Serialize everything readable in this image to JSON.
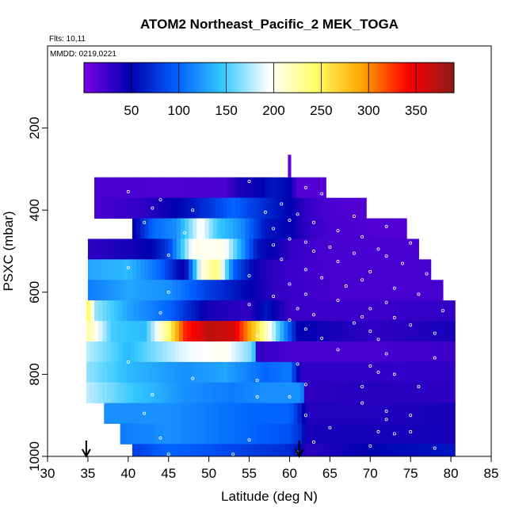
{
  "chart_data": {
    "type": "heatmap",
    "title": "ATOM2 Northeast_Pacific_2 MEK_TOGA",
    "flights_label": "Flts: 10,11",
    "date_label": "MMDD: 0219,0221",
    "xlabel": "Latitude (deg N)",
    "ylabel": "PSXC (mbar)",
    "xlim": [
      30,
      85
    ],
    "ylim": [
      1000,
      0
    ],
    "x_ticks": [
      "30",
      "35",
      "40",
      "45",
      "50",
      "55",
      "60",
      "65",
      "70",
      "75",
      "80",
      "85"
    ],
    "y_ticks": [
      "200",
      "400",
      "600",
      "800",
      "1000"
    ],
    "colorbar": {
      "range": [
        0,
        390
      ],
      "tick_labels": [
        "50",
        "100",
        "150",
        "200",
        "250",
        "300",
        "350"
      ],
      "colors": [
        "#7a00e6",
        "#0000b0",
        "#0060ff",
        "#33c8ff",
        "#ffffff",
        "#ffff66",
        "#ffa500",
        "#ff0000",
        "#8b1a1a"
      ]
    },
    "rows": [
      {
        "p0": 320,
        "p1": 370,
        "lat0": 35.8,
        "lat1": 64.5,
        "values": [
          [
            35.8,
            20
          ],
          [
            45,
            18
          ],
          [
            52,
            20
          ],
          [
            54,
            40
          ],
          [
            56,
            45
          ],
          [
            58,
            60
          ],
          [
            60,
            50
          ],
          [
            61,
            15
          ],
          [
            64.5,
            15
          ]
        ]
      },
      {
        "p0": 370,
        "p1": 420,
        "lat0": 35.8,
        "lat1": 69.5,
        "values": [
          [
            35.8,
            20
          ],
          [
            42,
            30
          ],
          [
            48,
            60
          ],
          [
            53,
            100
          ],
          [
            57,
            70
          ],
          [
            60,
            50
          ],
          [
            62,
            30
          ],
          [
            64,
            20
          ],
          [
            69.5,
            15
          ]
        ]
      },
      {
        "p0": 420,
        "p1": 470,
        "lat0": 40.5,
        "lat1": 74.5,
        "values": [
          [
            40.5,
            40
          ],
          [
            43,
            100
          ],
          [
            46,
            120
          ],
          [
            49,
            200
          ],
          [
            51,
            150
          ],
          [
            54,
            120
          ],
          [
            57,
            60
          ],
          [
            60,
            50
          ],
          [
            62,
            30
          ],
          [
            65,
            20
          ],
          [
            74.5,
            15
          ]
        ]
      },
      {
        "p0": 470,
        "p1": 520,
        "lat0": 35,
        "lat1": 76,
        "values": [
          [
            35,
            30
          ],
          [
            40,
            40
          ],
          [
            43,
            50
          ],
          [
            45,
            80
          ],
          [
            48,
            200
          ],
          [
            52,
            200
          ],
          [
            56,
            60
          ],
          [
            60,
            30
          ],
          [
            64,
            20
          ],
          [
            76,
            20
          ]
        ]
      },
      {
        "p0": 520,
        "p1": 570,
        "lat0": 35,
        "lat1": 77.5,
        "values": [
          [
            35,
            130
          ],
          [
            40,
            140
          ],
          [
            44,
            100
          ],
          [
            47,
            40
          ],
          [
            49,
            200
          ],
          [
            51,
            240
          ],
          [
            53,
            100
          ],
          [
            56,
            40
          ],
          [
            60,
            25
          ],
          [
            65,
            20
          ],
          [
            77.5,
            20
          ]
        ]
      },
      {
        "p0": 570,
        "p1": 620,
        "lat0": 35,
        "lat1": 79,
        "values": [
          [
            35,
            110
          ],
          [
            40,
            130
          ],
          [
            45,
            120
          ],
          [
            50,
            80
          ],
          [
            55,
            50
          ],
          [
            58,
            30
          ],
          [
            61,
            25
          ],
          [
            66,
            20
          ],
          [
            79,
            20
          ]
        ]
      },
      {
        "p0": 620,
        "p1": 670,
        "lat0": 34.8,
        "lat1": 80.5,
        "values": [
          [
            34.8,
            260
          ],
          [
            36,
            170
          ],
          [
            40,
            130
          ],
          [
            45,
            100
          ],
          [
            50,
            40
          ],
          [
            55,
            30
          ],
          [
            57,
            60
          ],
          [
            60,
            25
          ],
          [
            70,
            25
          ],
          [
            80.5,
            30
          ]
        ]
      },
      {
        "p0": 670,
        "p1": 720,
        "lat0": 34.8,
        "lat1": 80.5,
        "values": [
          [
            34.8,
            230
          ],
          [
            38,
            150
          ],
          [
            42,
            140
          ],
          [
            45,
            240
          ],
          [
            47,
            330
          ],
          [
            50,
            370
          ],
          [
            53,
            360
          ],
          [
            56,
            260
          ],
          [
            58,
            180
          ],
          [
            61,
            50
          ],
          [
            70,
            30
          ],
          [
            80.5,
            40
          ]
        ]
      },
      {
        "p0": 720,
        "p1": 770,
        "lat0": 34.8,
        "lat1": 80.5,
        "values": [
          [
            34.8,
            180
          ],
          [
            40,
            140
          ],
          [
            47,
            190
          ],
          [
            52,
            200
          ],
          [
            55.5,
            160
          ],
          [
            56,
            30
          ],
          [
            60,
            20
          ],
          [
            70,
            20
          ],
          [
            80.5,
            25
          ]
        ]
      },
      {
        "p0": 770,
        "p1": 820,
        "lat0": 34.8,
        "lat1": 80.5,
        "values": [
          [
            34.8,
            170
          ],
          [
            40,
            140
          ],
          [
            47,
            120
          ],
          [
            52,
            130
          ],
          [
            57,
            100
          ],
          [
            60,
            110
          ],
          [
            61.5,
            30
          ],
          [
            70,
            30
          ],
          [
            80.5,
            30
          ]
        ]
      },
      {
        "p0": 820,
        "p1": 870,
        "lat0": 34.8,
        "lat1": 80.5,
        "values": [
          [
            34.8,
            180
          ],
          [
            40,
            150
          ],
          [
            47,
            120
          ],
          [
            53,
            110
          ],
          [
            57,
            120
          ],
          [
            61.5,
            120
          ],
          [
            62,
            30
          ],
          [
            70,
            35
          ],
          [
            80.5,
            30
          ]
        ]
      },
      {
        "p0": 870,
        "p1": 920,
        "lat0": 37,
        "lat1": 80.5,
        "values": [
          [
            37,
            120
          ],
          [
            45,
            120
          ],
          [
            50,
            110
          ],
          [
            55,
            100
          ],
          [
            60,
            100
          ],
          [
            61.5,
            60
          ],
          [
            62,
            35
          ],
          [
            70,
            35
          ],
          [
            80.5,
            40
          ]
        ]
      },
      {
        "p0": 920,
        "p1": 970,
        "lat0": 39,
        "lat1": 80.5,
        "values": [
          [
            39,
            110
          ],
          [
            45,
            120
          ],
          [
            50,
            110
          ],
          [
            55,
            100
          ],
          [
            60,
            90
          ],
          [
            61.5,
            70
          ],
          [
            62,
            40
          ],
          [
            70,
            40
          ],
          [
            80.5,
            40
          ]
        ]
      },
      {
        "p0": 970,
        "p1": 1000,
        "lat0": 40.5,
        "lat1": 80.5,
        "values": [
          [
            40.5,
            80
          ],
          [
            45,
            100
          ],
          [
            50,
            90
          ],
          [
            55,
            80
          ],
          [
            60,
            70
          ],
          [
            61.5,
            50
          ],
          [
            62,
            30
          ],
          [
            70,
            50
          ],
          [
            80.5,
            60
          ]
        ]
      }
    ],
    "spike": {
      "lat0": 59.8,
      "lat1": 60.2,
      "p0": 265,
      "p1": 320,
      "value": 10
    },
    "markers": [
      {
        "name": "flight-start-arrow",
        "lat": 34.8
      },
      {
        "name": "flight-end-arrow",
        "lat": 61.2
      }
    ],
    "samples": [
      [
        55,
        330
      ],
      [
        62,
        345
      ],
      [
        40,
        355
      ],
      [
        64,
        360
      ],
      [
        44,
        375
      ],
      [
        59,
        385
      ],
      [
        43,
        395
      ],
      [
        48,
        400
      ],
      [
        57,
        405
      ],
      [
        61,
        410
      ],
      [
        68,
        415
      ],
      [
        42,
        430
      ],
      [
        60,
        425
      ],
      [
        63,
        430
      ],
      [
        72,
        440
      ],
      [
        58,
        445
      ],
      [
        66,
        450
      ],
      [
        47,
        455
      ],
      [
        69,
        465
      ],
      [
        60,
        470
      ],
      [
        62,
        478
      ],
      [
        75,
        480
      ],
      [
        58,
        485
      ],
      [
        65,
        490
      ],
      [
        71,
        495
      ],
      [
        63,
        500
      ],
      [
        68,
        505
      ],
      [
        45,
        510
      ],
      [
        72,
        512
      ],
      [
        59,
        520
      ],
      [
        66,
        525
      ],
      [
        74,
        530
      ],
      [
        40,
        540
      ],
      [
        62,
        545
      ],
      [
        70,
        550
      ],
      [
        77,
        555
      ],
      [
        55,
        560
      ],
      [
        64,
        565
      ],
      [
        69,
        570
      ],
      [
        60,
        580
      ],
      [
        67,
        585
      ],
      [
        73,
        590
      ],
      [
        45,
        600
      ],
      [
        62,
        605
      ],
      [
        76,
        605
      ],
      [
        58,
        610
      ],
      [
        66,
        620
      ],
      [
        72,
        625
      ],
      [
        55,
        630
      ],
      [
        61,
        640
      ],
      [
        70,
        640
      ],
      [
        79,
        645
      ],
      [
        44,
        650
      ],
      [
        63,
        655
      ],
      [
        69,
        660
      ],
      [
        73,
        662
      ],
      [
        60,
        668
      ],
      [
        68,
        675
      ],
      [
        75,
        680
      ],
      [
        62,
        690
      ],
      [
        70,
        695
      ],
      [
        78,
        700
      ],
      [
        56,
        705
      ],
      [
        64,
        712
      ],
      [
        71,
        715
      ],
      [
        66,
        740
      ],
      [
        72,
        750
      ],
      [
        78,
        760
      ],
      [
        40,
        770
      ],
      [
        61,
        775
      ],
      [
        70,
        780
      ],
      [
        71,
        795
      ],
      [
        73,
        800
      ],
      [
        48,
        810
      ],
      [
        56,
        815
      ],
      [
        62,
        825
      ],
      [
        69,
        830
      ],
      [
        76,
        830
      ],
      [
        43,
        850
      ],
      [
        56,
        855
      ],
      [
        60,
        855
      ],
      [
        69,
        870
      ],
      [
        72,
        890
      ],
      [
        42,
        895
      ],
      [
        62,
        900
      ],
      [
        75,
        900
      ],
      [
        72,
        910
      ],
      [
        65,
        930
      ],
      [
        71,
        940
      ],
      [
        73,
        945
      ],
      [
        75,
        940
      ],
      [
        44,
        955
      ],
      [
        55,
        960
      ],
      [
        63,
        965
      ],
      [
        70,
        975
      ],
      [
        78,
        980
      ],
      [
        45,
        995
      ],
      [
        53,
        995
      ],
      [
        61,
        990
      ]
    ]
  }
}
